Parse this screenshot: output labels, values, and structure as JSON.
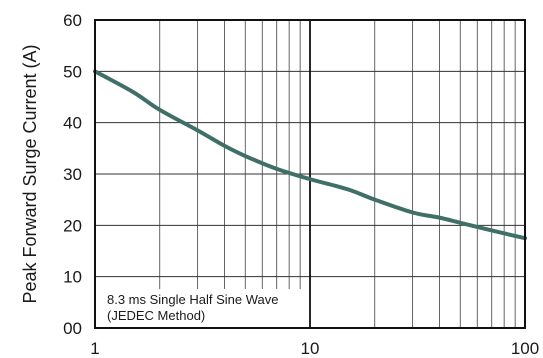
{
  "chart_data": {
    "type": "line",
    "title": "",
    "xlabel": "",
    "ylabel": "Peak Forward Surge Current (A)",
    "x_scale": "log",
    "xlim": [
      1,
      100
    ],
    "ylim": [
      0,
      60
    ],
    "x_ticks": [
      1,
      10,
      100
    ],
    "x_tick_labels": [
      "1",
      "10",
      "100"
    ],
    "y_ticks": [
      0,
      10,
      20,
      30,
      40,
      50,
      60
    ],
    "y_tick_labels": [
      "00",
      "10",
      "20",
      "30",
      "40",
      "50",
      "60"
    ],
    "grid": true,
    "annotation": [
      "8.3 ms Single Half Sine Wave",
      "(JEDEC Method)"
    ],
    "series": [
      {
        "color": "#3f6f68",
        "points": [
          {
            "x": 1,
            "y": 50
          },
          {
            "x": 1.5,
            "y": 46
          },
          {
            "x": 2,
            "y": 42.5
          },
          {
            "x": 3,
            "y": 38.5
          },
          {
            "x": 4,
            "y": 35.5
          },
          {
            "x": 5,
            "y": 33.5
          },
          {
            "x": 7,
            "y": 31
          },
          {
            "x": 10,
            "y": 29
          },
          {
            "x": 15,
            "y": 27
          },
          {
            "x": 20,
            "y": 25
          },
          {
            "x": 30,
            "y": 22.5
          },
          {
            "x": 40,
            "y": 21.5
          },
          {
            "x": 50,
            "y": 20.5
          },
          {
            "x": 70,
            "y": 19
          },
          {
            "x": 100,
            "y": 17.5
          }
        ]
      }
    ]
  }
}
